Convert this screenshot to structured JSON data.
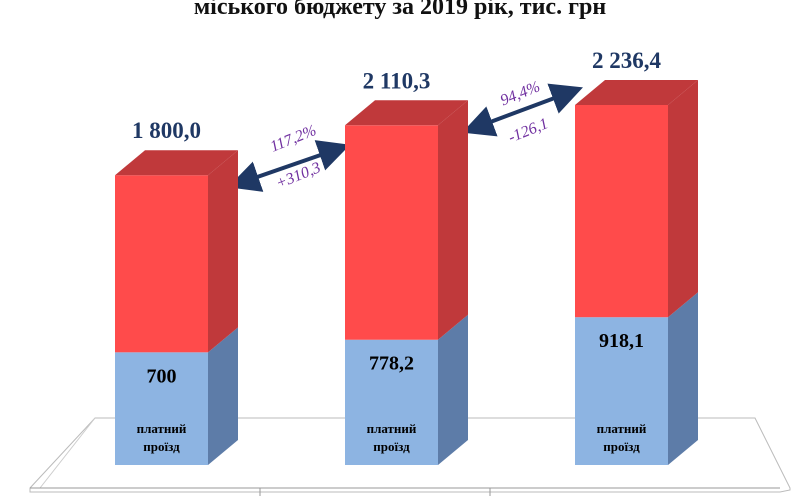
{
  "chart_data": {
    "type": "bar3d",
    "title": "міського бюджету за 2019 рік, тис. грн",
    "categories": [
      null,
      null,
      null
    ],
    "series": [
      {
        "name": "платний проїзд",
        "color": "#8db4e2",
        "side_color": "#5d7ca8",
        "values": [
          700,
          778.2,
          918.1
        ],
        "value_labels": [
          "700",
          "778,2",
          "918,1"
        ]
      },
      {
        "color": "#ff4b4b",
        "side_color": "#c0393b",
        "values": [
          1100,
          1332.1,
          1318.3
        ]
      }
    ],
    "totals": [
      1800,
      2110.3,
      2236.4
    ],
    "total_labels": [
      "1 800,0",
      "2 110,3",
      "2 236,4"
    ],
    "annotations": [
      {
        "percent": "117,2%",
        "change": "+310,3"
      },
      {
        "percent": "94,4%",
        "change": "-126,1"
      }
    ]
  }
}
